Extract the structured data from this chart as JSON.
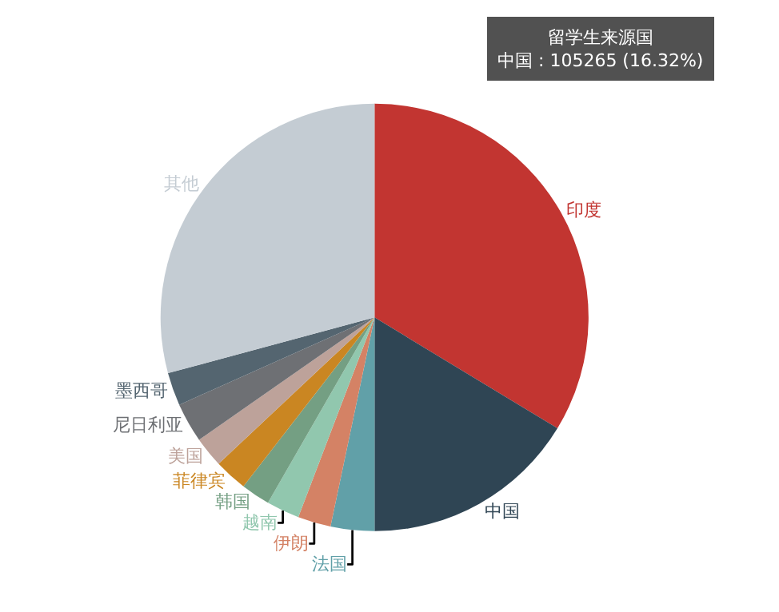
{
  "chart_data": {
    "type": "pie",
    "categories": [
      "印度",
      "中国",
      "法国",
      "伊朗",
      "越南",
      "韩国",
      "菲律宾",
      "美国",
      "尼日利亚",
      "墨西哥",
      "其他"
    ],
    "values": [
      33.68,
      16.32,
      3.3,
      2.5,
      2.5,
      2.2,
      2.5,
      2.3,
      3.0,
      2.5,
      29.2
    ],
    "colors": [
      "#c23531",
      "#2f4554",
      "#61a0a8",
      "#d48265",
      "#91c7ae",
      "#749f83",
      "#ca8622",
      "#bda29a",
      "#6e7074",
      "#546570",
      "#c4ccd3"
    ],
    "legend": false,
    "annotations": [
      "留学生来源国",
      "中国 : 105265 (16.32%)"
    ]
  }
}
